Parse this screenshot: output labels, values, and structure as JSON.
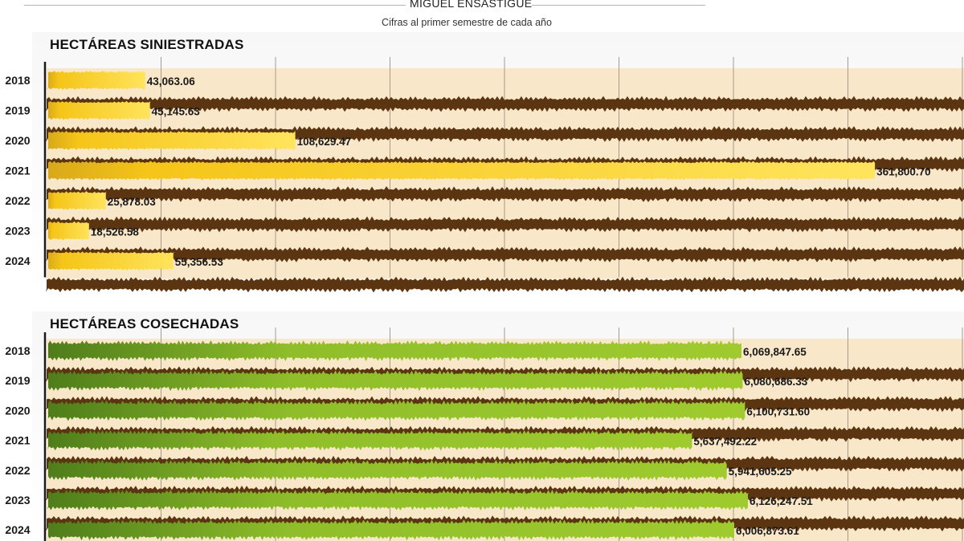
{
  "header": {
    "author": "MIGUEL ENSASTIGUE",
    "subtitle": "Cifras al primer semestre de cada año"
  },
  "colors": {
    "soil": "#5b3512",
    "soil_light": "#f8e7c9",
    "damaged_bar": "#f5c518",
    "damaged_bar_light": "#ffe45c",
    "harvest_bar": "#8fbe2a",
    "harvest_bar_dark": "#4e7d1b",
    "gridline": "#a89a8a"
  },
  "chart_data": [
    {
      "type": "bar",
      "orientation": "horizontal",
      "title": "HECTÁREAS SINIESTRADAS",
      "categories": [
        "2018",
        "2019",
        "2020",
        "2021",
        "2022",
        "2023",
        "2024"
      ],
      "values": [
        43063.06,
        45145.63,
        108629.47,
        361800.7,
        25878.03,
        18526.58,
        55356.53
      ],
      "value_labels": [
        "43,063.06",
        "45,145.63",
        "108,629.47",
        "361,800.70",
        "25,878.03",
        "18,526.58",
        "55,356.53"
      ],
      "xlim": [
        0,
        400000
      ],
      "grid": true,
      "legend": "none"
    },
    {
      "type": "bar",
      "orientation": "horizontal",
      "title": "HECTÁREAS COSECHADAS",
      "categories": [
        "2018",
        "2019",
        "2020",
        "2021",
        "2022",
        "2023",
        "2024"
      ],
      "values": [
        6069847.65,
        6080686.33,
        6100731.6,
        5637492.22,
        5941605.25,
        6126247.51,
        6006873.61
      ],
      "value_labels": [
        "6,069,847.65",
        "6,080,686.33",
        "6,100,731.60",
        "5,637,492.22",
        "5,941,605.25",
        "6,126,247.51",
        "6,006,873.61"
      ],
      "xlim": [
        0,
        8000000
      ],
      "grid": true,
      "legend": "none"
    }
  ]
}
